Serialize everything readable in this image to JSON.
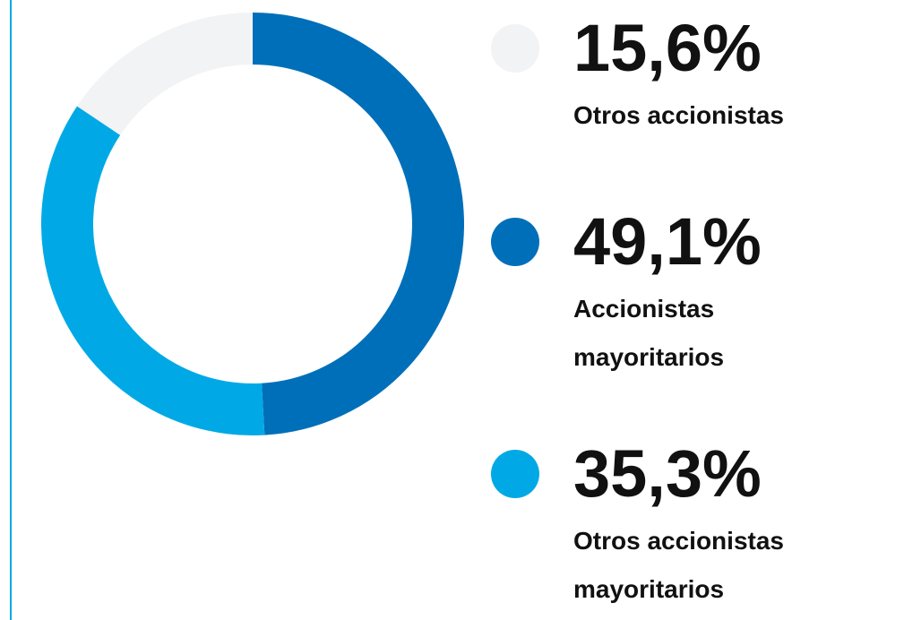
{
  "chart_data": {
    "type": "donut",
    "categories": [
      "Otros accionistas",
      "Accionistas mayoritarios",
      "Otros accionistas mayoritarios"
    ],
    "values": [
      15.6,
      49.1,
      35.3
    ],
    "value_labels": [
      "15,6%",
      "49,1%",
      "35,3%"
    ],
    "colors": [
      "#f2f3f5",
      "#006fb9",
      "#00a9e6"
    ]
  }
}
